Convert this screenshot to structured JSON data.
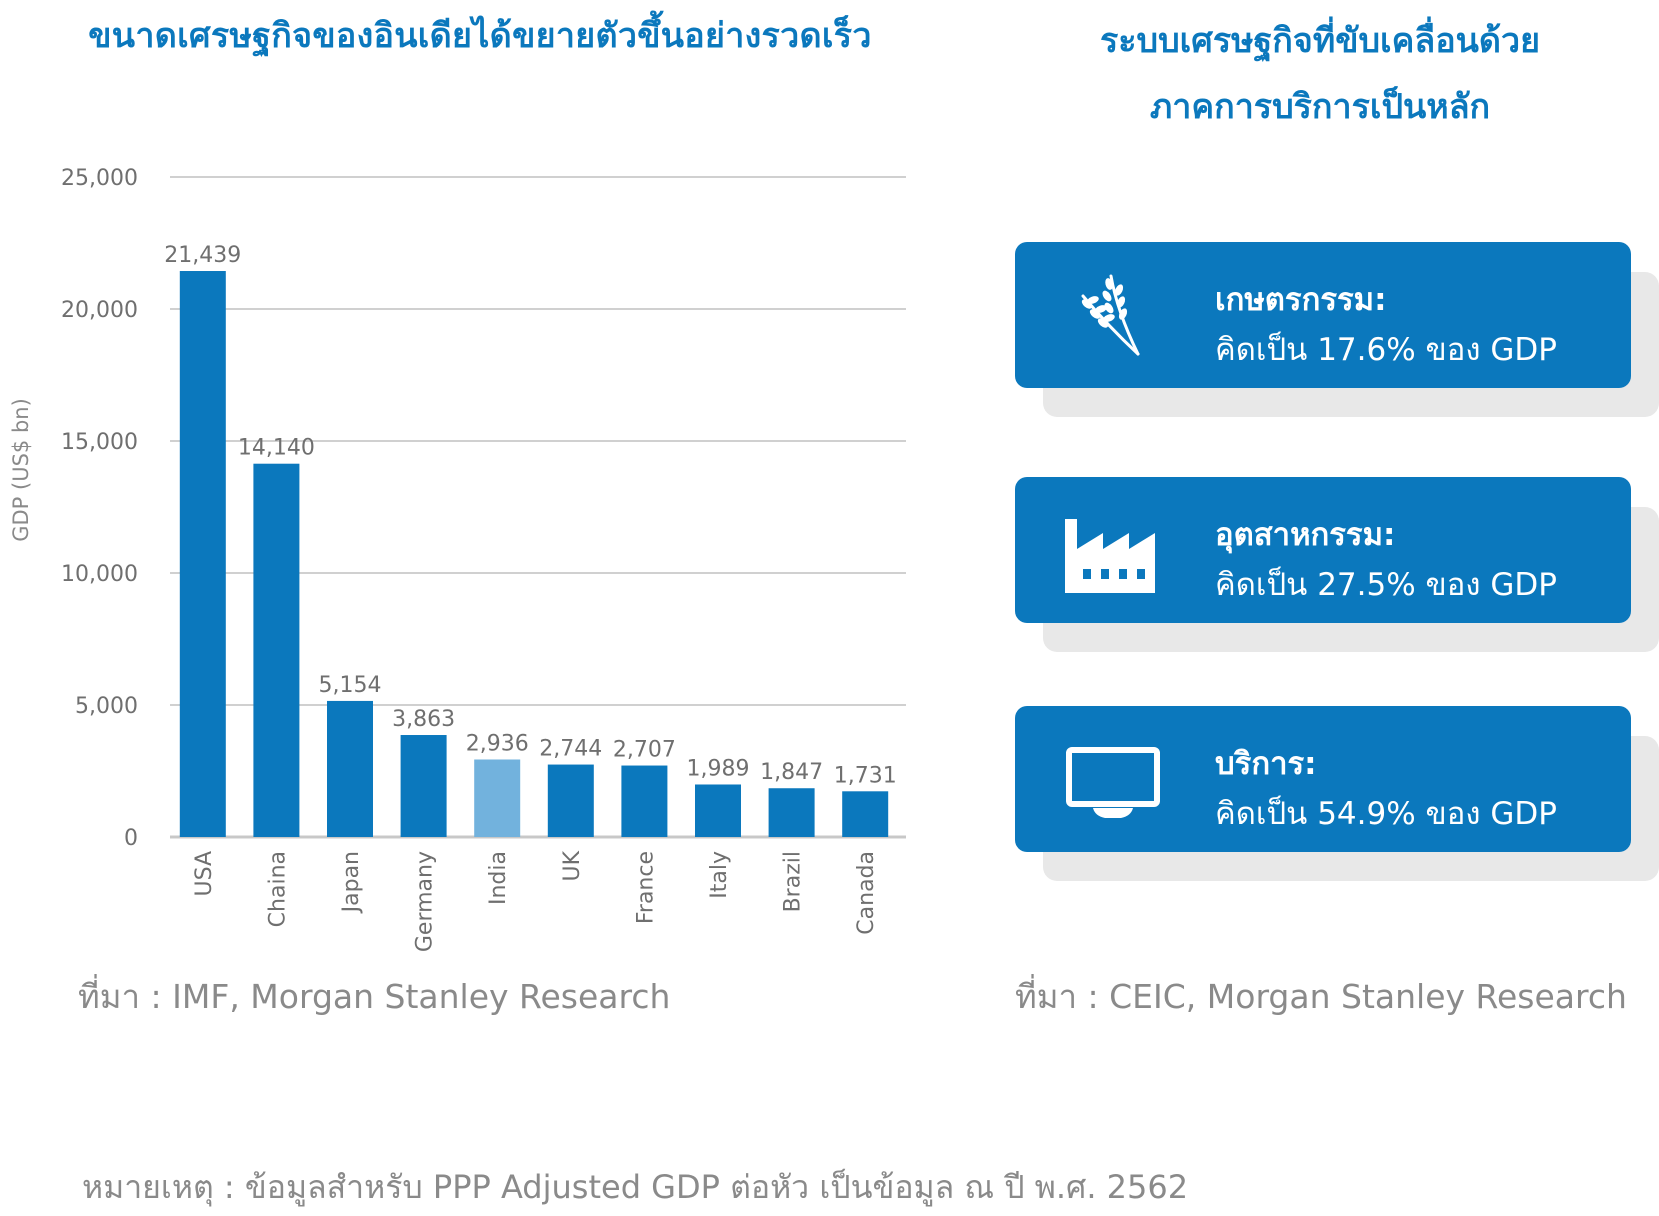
{
  "left_title": "ขนาดเศรษฐกิจของอินเดียได้ขยายตัวขึ้นอย่างรวดเร็ว",
  "right_title_line1": "ระบบเศรษฐกิจที่ขับเคลื่อนด้วย",
  "right_title_line2": "ภาคการบริการเป็นหลัก",
  "chart_data": {
    "type": "bar",
    "title": "ขนาดเศรษฐกิจของอินเดียได้ขยายตัวขึ้นอย่างรวดเร็ว",
    "ylabel": "GDP (US$ bn)",
    "xlabel": "",
    "ylim": [
      0,
      25000
    ],
    "yticks": [
      0,
      5000,
      10000,
      15000,
      20000,
      25000
    ],
    "ytick_labels": [
      "0",
      "5,000",
      "10,000",
      "15,000",
      "20,000",
      "25,000"
    ],
    "categories": [
      "USA",
      "Chaina",
      "Japan",
      "Germany",
      "India",
      "UK",
      "France",
      "Italy",
      "Brazil",
      "Canada"
    ],
    "values": [
      21439,
      14140,
      5154,
      3863,
      2936,
      2744,
      2707,
      1989,
      1847,
      1731
    ],
    "value_labels": [
      "21,439",
      "14,140",
      "5,154",
      "3,863",
      "2,936",
      "2,744",
      "2,707",
      "1,989",
      "1,847",
      "1,731"
    ],
    "highlight": "India",
    "bar_color": "#0b78bd",
    "highlight_color": "#72b2dd",
    "grid": true,
    "legend": "none"
  },
  "left_source": "ที่มา : IMF, Morgan Stanley Research",
  "right_source": "ที่มา : CEIC, Morgan Stanley Research",
  "note": "หมายเหตุ : ข้อมูลสำหรับ PPP Adjusted GDP ต่อหัว เป็นข้อมูล ณ ปี พ.ศ. 2562",
  "cards": [
    {
      "icon": "wheat-icon",
      "label": "เกษตรกรรม:",
      "value": "คิดเป็น 17.6% ของ GDP"
    },
    {
      "icon": "factory-icon",
      "label": "อุตสาหกรรม:",
      "value": "คิดเป็น 27.5% ของ GDP"
    },
    {
      "icon": "monitor-icon",
      "label": "บริการ:",
      "value": "คิดเป็น 54.9% ของ GDP"
    }
  ],
  "colors": {
    "brand_blue": "#0b78bd",
    "highlight": "#72b2dd",
    "muted_text": "#8a8a8a"
  }
}
